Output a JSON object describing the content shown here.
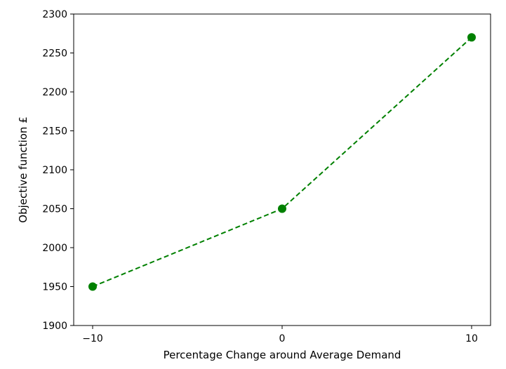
{
  "chart_data": {
    "type": "line",
    "title": "",
    "xlabel": "Percentage Change around Average Demand",
    "ylabel": "Objective function £",
    "x": [
      -10,
      0,
      10
    ],
    "series": [
      {
        "values": [
          1950,
          2050,
          2270
        ],
        "color": "#008000",
        "line_style": "dashed",
        "marker": "circle"
      }
    ],
    "xlim": [
      -11,
      11
    ],
    "ylim": [
      1900,
      2300
    ],
    "xticks": [
      {
        "value": -10,
        "label": "−10"
      },
      {
        "value": 0,
        "label": "0"
      },
      {
        "value": 10,
        "label": "10"
      }
    ],
    "yticks": [
      {
        "value": 1900,
        "label": "1900"
      },
      {
        "value": 1950,
        "label": "1950"
      },
      {
        "value": 2000,
        "label": "2000"
      },
      {
        "value": 2050,
        "label": "2050"
      },
      {
        "value": 2100,
        "label": "2100"
      },
      {
        "value": 2150,
        "label": "2150"
      },
      {
        "value": 2200,
        "label": "2200"
      },
      {
        "value": 2250,
        "label": "2250"
      },
      {
        "value": 2300,
        "label": "2300"
      }
    ],
    "grid": false,
    "legend": "none"
  }
}
